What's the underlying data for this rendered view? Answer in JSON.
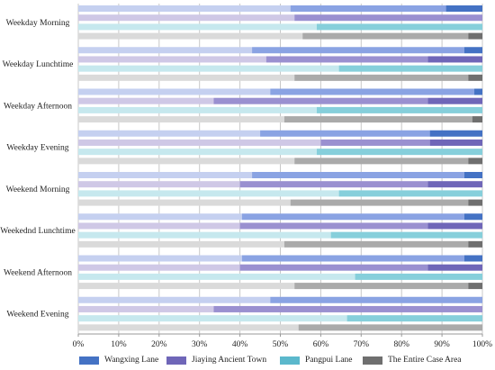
{
  "chart_data": {
    "type": "bar",
    "orientation": "horizontal",
    "stacked": true,
    "categories": [
      "Weekday Morning",
      "Weekday Lunchtime",
      "Weekday Afternoon",
      "Weekday Evening",
      "Weekend Morning",
      "Weekednd Lunchtime",
      "Weekend Afternoon",
      "Weekend Evening"
    ],
    "series": [
      {
        "name": "Wangxing Lane",
        "light": "#c5d0f0",
        "mid": "#8aa3e3",
        "dark": "#4472c4",
        "segments": [
          [
            52.5,
            38.5,
            9.0
          ],
          [
            43.0,
            52.5,
            4.5
          ],
          [
            47.5,
            50.5,
            2.0
          ],
          [
            45.0,
            42.0,
            13.0
          ],
          [
            43.0,
            52.5,
            4.5
          ],
          [
            40.5,
            55.0,
            4.5
          ],
          [
            40.5,
            55.0,
            4.5
          ],
          [
            47.5,
            52.5,
            0.0
          ]
        ]
      },
      {
        "name": "Jiaying Ancient Town",
        "light": "#cfc8e6",
        "mid": "#9a90d0",
        "dark": "#6f66b8",
        "segments": [
          [
            53.5,
            46.5,
            0.0
          ],
          [
            46.5,
            40.0,
            13.5
          ],
          [
            33.5,
            53.0,
            13.5
          ],
          [
            60.0,
            27.0,
            13.0
          ],
          [
            40.0,
            46.5,
            13.5
          ],
          [
            40.0,
            46.5,
            13.5
          ],
          [
            40.0,
            46.5,
            13.5
          ],
          [
            33.5,
            66.5,
            0.0
          ]
        ]
      },
      {
        "name": "Pangpui Lane",
        "light": "#c6e8ee",
        "mid": "#86cfdb",
        "dark": "#5bb8cc",
        "segments": [
          [
            59.0,
            41.0,
            0.0
          ],
          [
            64.5,
            35.5,
            0.0
          ],
          [
            59.0,
            41.0,
            0.0
          ],
          [
            59.0,
            41.0,
            0.0
          ],
          [
            64.5,
            35.5,
            0.0
          ],
          [
            62.5,
            37.5,
            0.0
          ],
          [
            68.5,
            31.5,
            0.0
          ],
          [
            66.5,
            33.5,
            0.0
          ]
        ]
      },
      {
        "name": "The Entire Case Area",
        "light": "#dadada",
        "mid": "#aaaaaa",
        "dark": "#6f6f6f",
        "segments": [
          [
            55.5,
            41.0,
            3.5
          ],
          [
            53.5,
            43.0,
            3.5
          ],
          [
            51.0,
            46.5,
            2.5
          ],
          [
            53.5,
            43.0,
            3.5
          ],
          [
            52.5,
            44.0,
            3.5
          ],
          [
            51.0,
            45.5,
            3.5
          ],
          [
            53.5,
            43.0,
            3.5
          ],
          [
            54.5,
            45.5,
            0.0
          ]
        ]
      }
    ],
    "x_ticks": [
      "0%",
      "10%",
      "20%",
      "30%",
      "40%",
      "50%",
      "60%",
      "70%",
      "80%",
      "90%",
      "100%"
    ],
    "xlim": [
      0,
      100
    ],
    "grid": true,
    "legend_position": "bottom"
  }
}
